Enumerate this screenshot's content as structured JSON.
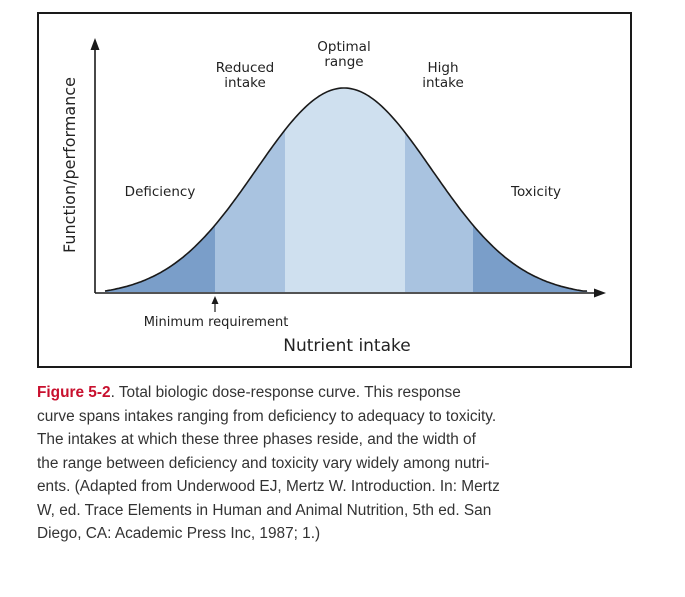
{
  "diagram": {
    "y_axis_label": "Function/performance",
    "x_axis_label": "Nutrient intake",
    "regions": {
      "deficiency": "Deficiency",
      "reduced_line1": "Reduced",
      "reduced_line2": "intake",
      "optimal_line1": "Optimal",
      "optimal_line2": "range",
      "high_line1": "High",
      "high_line2": "intake",
      "toxicity": "Toxicity"
    },
    "minimum_requirement": "Minimum requirement",
    "colors": {
      "deficiency_fill": "#7a9ec9",
      "reduced_fill": "#a9c3e0",
      "optimal_fill": "#cfe0ef",
      "high_fill": "#a9c3e0",
      "toxicity_fill": "#7a9ec9",
      "curve": "#1a1a1a",
      "caption_label": "#c8102e"
    }
  },
  "caption": {
    "figure_label": "Figure 5-2",
    "line1_rest": ". Total biologic dose-response curve. This response",
    "line2": "curve spans intakes ranging from deficiency to adequacy to toxicity.",
    "line3": "The intakes at which these three phases reside, and the width of",
    "line4": "the range between deficiency and toxicity vary widely among nutri-",
    "line5": "ents. (Adapted from Underwood EJ, Mertz W. Introduction. In: Mertz",
    "line6": "W, ed. Trace Elements in Human and Animal Nutrition, 5th ed. San",
    "line7": "Diego, CA: Academic Press Inc, 1987; 1.)"
  }
}
